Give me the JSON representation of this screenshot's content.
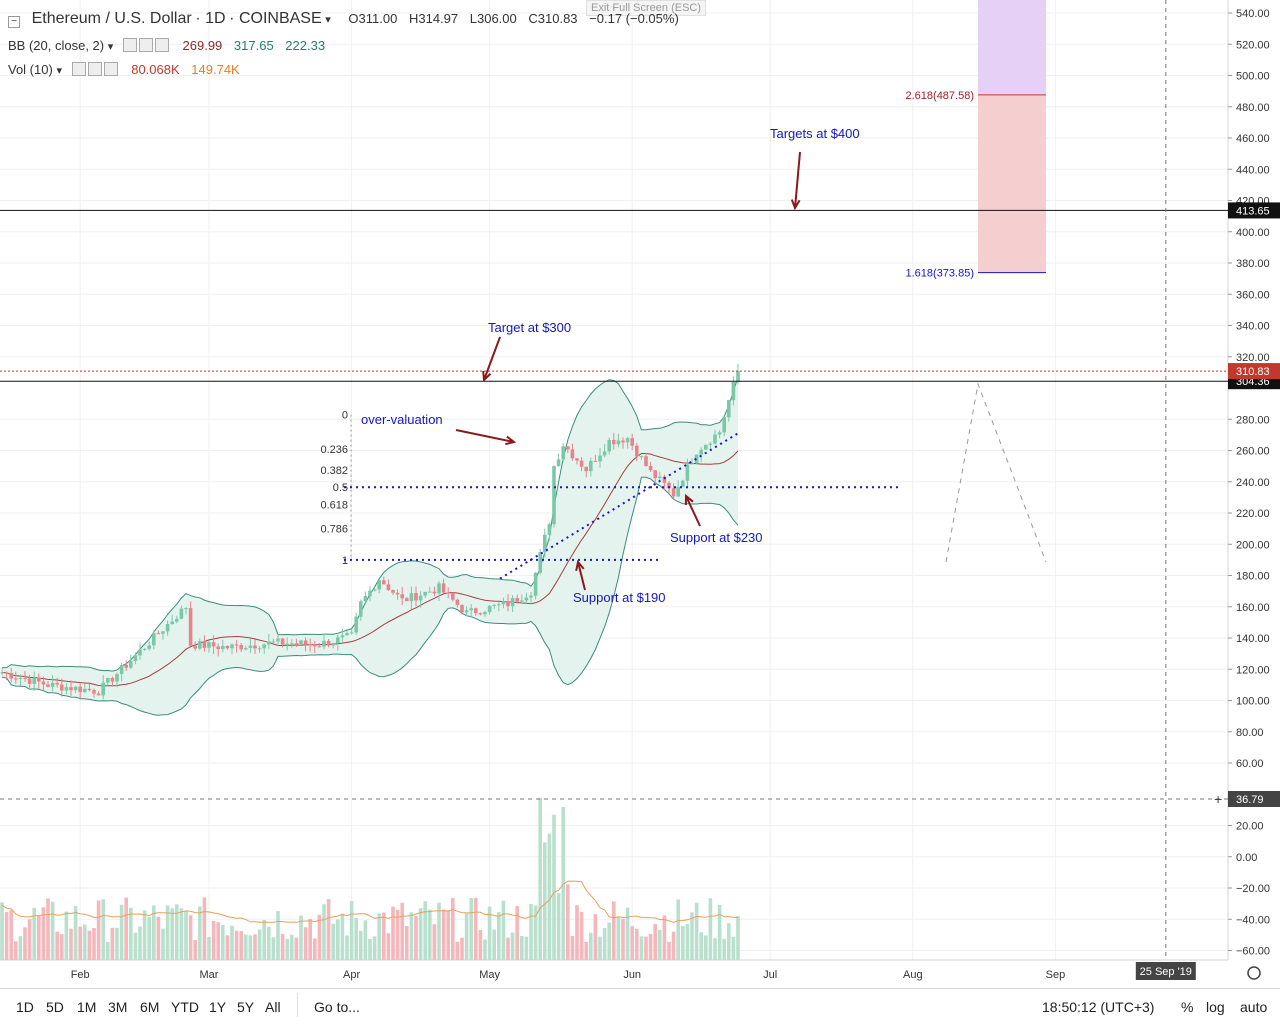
{
  "header": {
    "symbol": "Ethereum / U.S. Dollar",
    "interval": "1D",
    "exchange": "COINBASE",
    "open": "O311.00",
    "high": "H314.97",
    "low": "L306.00",
    "close": "C310.83",
    "change": "−0.17 (−0.05%)",
    "exit_fullscreen": "Exit Full Screen (ESC)"
  },
  "indicators": {
    "bb": {
      "label": "BB (20, close, 2)",
      "v1": "269.99",
      "v2": "317.65",
      "v3": "222.33"
    },
    "vol": {
      "label": "Vol (10)",
      "v1": "80.068K",
      "v2": "149.74K"
    }
  },
  "colors": {
    "up": "#7bc8a8",
    "down": "#e9838a",
    "volume_up": "#b9dfcd",
    "volume_down": "#f3b7bc",
    "bb_fill": "#e5f3ee",
    "bb_band": "#3b8c7d",
    "bb_basis": "#a04040",
    "annotation": "#1515c9",
    "arrow": "#8a1a1a",
    "fib_upper": "#e6d0f5",
    "fib_lower": "#f5cfd0",
    "price_label": "#c0392b"
  },
  "chart_data": {
    "type": "candlestick",
    "y_axis": {
      "min": -60,
      "max": 540,
      "ticks": [
        540,
        520,
        500,
        480,
        460,
        440,
        420,
        400,
        380,
        360,
        340,
        320,
        280,
        260,
        240,
        220,
        200,
        180,
        160,
        140,
        120,
        100,
        80,
        60,
        20,
        0,
        -20,
        -40,
        -60
      ],
      "tick_labels": [
        "540.00",
        "520.00",
        "500.00",
        "480.00",
        "460.00",
        "440.00",
        "420.00",
        "400.00",
        "380.00",
        "360.00",
        "340.00",
        "320.00",
        "280.00",
        "260.00",
        "240.00",
        "220.00",
        "200.00",
        "180.00",
        "160.00",
        "140.00",
        "120.00",
        "100.00",
        "80.00",
        "60.00",
        "20.00",
        "0.00",
        "−20.00",
        "−40.00",
        "−60.00"
      ]
    },
    "x_axis": {
      "start": "2019-01-15",
      "end": "2019-10-12",
      "months": [
        {
          "label": "Feb",
          "date": "2019-02-01"
        },
        {
          "label": "Mar",
          "date": "2019-03-01"
        },
        {
          "label": "Apr",
          "date": "2019-04-01"
        },
        {
          "label": "May",
          "date": "2019-05-01"
        },
        {
          "label": "Jun",
          "date": "2019-06-01"
        },
        {
          "label": "Jul",
          "date": "2019-07-01"
        },
        {
          "label": "Aug",
          "date": "2019-08-01"
        },
        {
          "label": "Sep",
          "date": "2019-09-01"
        }
      ],
      "crosshair_label": "25 Sep '19",
      "crosshair_date": "2019-09-25"
    },
    "series_anchors": [
      {
        "date": "2019-01-15",
        "close": 118
      },
      {
        "date": "2019-01-25",
        "close": 110
      },
      {
        "date": "2019-02-05",
        "close": 106
      },
      {
        "date": "2019-02-10",
        "close": 120
      },
      {
        "date": "2019-02-18",
        "close": 143
      },
      {
        "date": "2019-02-24",
        "close": 160
      },
      {
        "date": "2019-02-25",
        "close": 136
      },
      {
        "date": "2019-03-05",
        "close": 134
      },
      {
        "date": "2019-03-15",
        "close": 137
      },
      {
        "date": "2019-03-25",
        "close": 136
      },
      {
        "date": "2019-04-01",
        "close": 141
      },
      {
        "date": "2019-04-03",
        "close": 162
      },
      {
        "date": "2019-04-07",
        "close": 178
      },
      {
        "date": "2019-04-12",
        "close": 164
      },
      {
        "date": "2019-04-20",
        "close": 172
      },
      {
        "date": "2019-04-26",
        "close": 156
      },
      {
        "date": "2019-05-05",
        "close": 162
      },
      {
        "date": "2019-05-10",
        "close": 170
      },
      {
        "date": "2019-05-12",
        "close": 193
      },
      {
        "date": "2019-05-14",
        "close": 215
      },
      {
        "date": "2019-05-15",
        "close": 250
      },
      {
        "date": "2019-05-17",
        "close": 264
      },
      {
        "date": "2019-05-22",
        "close": 248
      },
      {
        "date": "2019-05-27",
        "close": 266
      },
      {
        "date": "2019-05-31",
        "close": 268
      },
      {
        "date": "2019-06-05",
        "close": 246
      },
      {
        "date": "2019-06-08",
        "close": 238
      },
      {
        "date": "2019-06-10",
        "close": 232
      },
      {
        "date": "2019-06-15",
        "close": 260
      },
      {
        "date": "2019-06-20",
        "close": 272
      },
      {
        "date": "2019-06-22",
        "close": 292
      },
      {
        "date": "2019-06-24",
        "close": 310.83
      }
    ],
    "bollinger": {
      "period": 20,
      "stddev": 2,
      "basis": 269.99,
      "upper": 317.65,
      "lower": 222.33
    },
    "horizontal_lines": [
      {
        "value": 413.65,
        "label": "413.65"
      },
      {
        "value": 304.36,
        "label": "304.36"
      },
      {
        "value": 310.83,
        "label": "310.83",
        "style": "dotted"
      }
    ],
    "fib_retracement": {
      "from": 283,
      "to": 190,
      "levels": [
        {
          "ratio": "0",
          "value": 283
        },
        {
          "ratio": "0.236",
          "value": 261
        },
        {
          "ratio": "0.382",
          "value": 247.5
        },
        {
          "ratio": "0.5",
          "value": 236.5
        },
        {
          "ratio": "0.618",
          "value": 225.5
        },
        {
          "ratio": "0.786",
          "value": 210
        },
        {
          "ratio": "1",
          "value": 190
        }
      ]
    },
    "fib_extension": {
      "levels": [
        {
          "label": "2.618(487.58)",
          "value": 487.58
        },
        {
          "label": "1.618(373.85)",
          "value": 373.85
        }
      ],
      "top": 540
    },
    "volume": {
      "axis_label": "36.79"
    },
    "annotations": [
      {
        "text": "Targets at $400"
      },
      {
        "text": "Target at $300"
      },
      {
        "text": "over-valuation"
      },
      {
        "text": "Support at $230"
      },
      {
        "text": "Support at $190"
      }
    ]
  },
  "bottom_bar": {
    "ranges": [
      "1D",
      "5D",
      "1M",
      "3M",
      "6M",
      "YTD",
      "1Y",
      "5Y",
      "All"
    ],
    "goto": "Go to...",
    "time": "18:50:12 (UTC+3)",
    "percent": "%",
    "log": "log",
    "auto": "auto"
  }
}
